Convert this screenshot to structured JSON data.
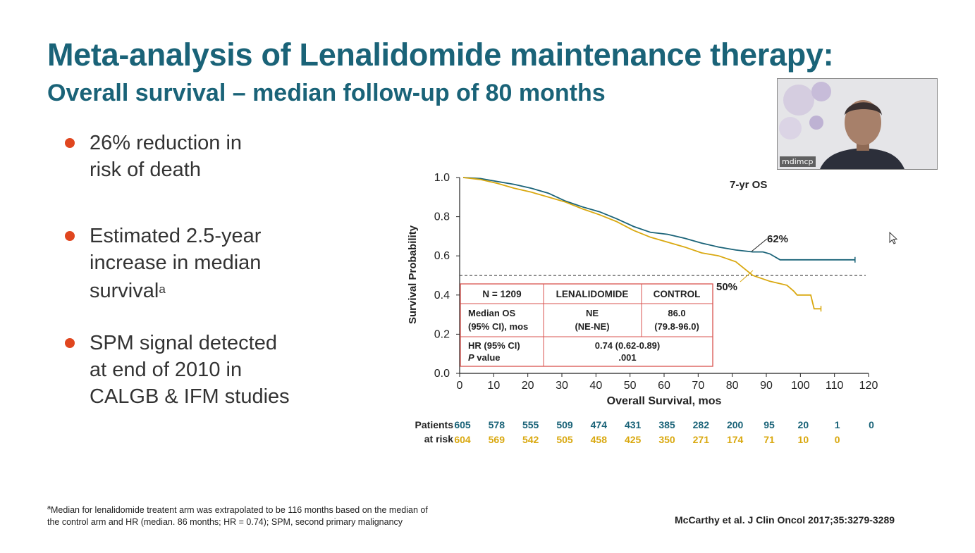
{
  "slide": {
    "title": "Meta-analysis of Lenalidomide maintenance therapy:",
    "subtitle": "Overall survival – median follow-up of 80 months"
  },
  "bullets": [
    {
      "text": "26% reduction in\nrisk of death",
      "sup": ""
    },
    {
      "text": "Estimated 2.5-year\nincrease in median\nsurvival",
      "sup": "a"
    },
    {
      "text": "SPM signal detected\nat end of 2010 in\nCALGB & IFM studies",
      "sup": ""
    }
  ],
  "video": {
    "label": "mdimcp"
  },
  "chart_data": {
    "type": "line",
    "xlabel": "Overall Survival, mos",
    "ylabel": "Survival Probability",
    "xlim": [
      0,
      120
    ],
    "ylim": [
      0,
      1.0
    ],
    "xticks": [
      0,
      10,
      20,
      30,
      40,
      50,
      60,
      70,
      80,
      90,
      100,
      110,
      120
    ],
    "yticks": [
      "0.0",
      "0.2",
      "0.4",
      "0.6",
      "0.8",
      "1.0"
    ],
    "reference_line": 0.5,
    "series": [
      {
        "color": "#1a6378",
        "x": [
          0,
          5,
          10,
          15,
          20,
          25,
          30,
          35,
          40,
          45,
          50,
          55,
          60,
          65,
          70,
          75,
          80,
          85,
          88,
          90,
          93,
          95,
          100,
          105,
          110,
          115
        ],
        "y": [
          1.0,
          0.995,
          0.98,
          0.965,
          0.945,
          0.92,
          0.88,
          0.85,
          0.825,
          0.79,
          0.75,
          0.72,
          0.71,
          0.69,
          0.665,
          0.645,
          0.63,
          0.62,
          0.62,
          0.61,
          0.58,
          0.58,
          0.58,
          0.58,
          0.58,
          0.58
        ]
      },
      {
        "color": "#d9a80f",
        "x": [
          0,
          5,
          10,
          15,
          20,
          25,
          30,
          35,
          40,
          45,
          50,
          55,
          60,
          65,
          70,
          75,
          80,
          85,
          90,
          95,
          97,
          98,
          100,
          102,
          103,
          104,
          105
        ],
        "y": [
          1.0,
          0.99,
          0.97,
          0.945,
          0.925,
          0.9,
          0.875,
          0.84,
          0.81,
          0.775,
          0.73,
          0.695,
          0.67,
          0.645,
          0.615,
          0.6,
          0.57,
          0.5,
          0.47,
          0.45,
          0.42,
          0.4,
          0.4,
          0.4,
          0.33,
          0.33,
          0.33
        ]
      }
    ],
    "annotations": {
      "title": "7-yr OS",
      "label_62": "62%",
      "label_50": "50%"
    },
    "table": {
      "header": [
        "N = 1209",
        "LENALIDOMIDE",
        "CONTROL"
      ],
      "row1": {
        "label": "Median OS\n(95% CI), mos",
        "len": "NE\n(NE-NE)",
        "ctrl": "86.0\n(79.8-96.0)"
      },
      "row2": {
        "label_a": "HR (95% CI)",
        "label_b_italic": "P",
        "label_b": " value",
        "value": "0.74 (0.62-0.89)\n.001"
      }
    },
    "risk": {
      "label_1": "Patients",
      "label_2": "at risk",
      "row1": [
        "605",
        "578",
        "555",
        "509",
        "474",
        "431",
        "385",
        "282",
        "200",
        "95",
        "20",
        "1",
        "0"
      ],
      "row2": [
        "604",
        "569",
        "542",
        "505",
        "458",
        "425",
        "350",
        "271",
        "174",
        "71",
        "10",
        "0",
        ""
      ]
    }
  },
  "footnote": {
    "sup": "a",
    "text": "Median for lenalidomide treatent arm was extrapolated to  be 116 months based on the median of",
    "text2": "the control arm and HR (median. 86 months; HR = 0.74); SPM, second primary malignancy"
  },
  "citation": "McCarthy et al. J Clin Oncol 2017;35:3279-3289"
}
